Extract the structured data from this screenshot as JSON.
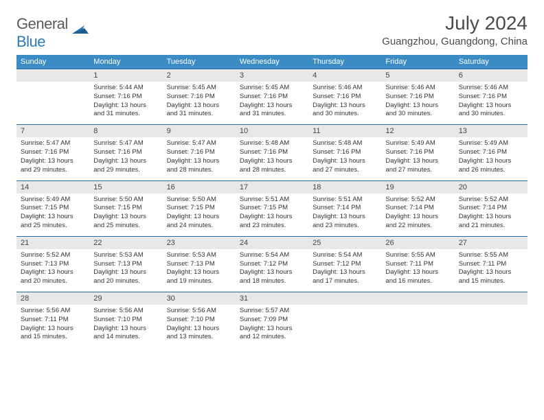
{
  "logo": {
    "text_a": "General",
    "text_b": "Blue"
  },
  "title": "July 2024",
  "location": "Guangzhou, Guangdong, China",
  "colors": {
    "header_bg": "#3b8bc4",
    "daynum_bg": "#e8e8e8",
    "row_divider": "#2a6a9a",
    "text": "#333333",
    "logo_gray": "#5a5a5a",
    "logo_blue": "#2a7ab8"
  },
  "day_headers": [
    "Sunday",
    "Monday",
    "Tuesday",
    "Wednesday",
    "Thursday",
    "Friday",
    "Saturday"
  ],
  "weeks": [
    [
      null,
      {
        "n": "1",
        "sr": "5:44 AM",
        "ss": "7:16 PM",
        "dl": "13 hours and 31 minutes."
      },
      {
        "n": "2",
        "sr": "5:45 AM",
        "ss": "7:16 PM",
        "dl": "13 hours and 31 minutes."
      },
      {
        "n": "3",
        "sr": "5:45 AM",
        "ss": "7:16 PM",
        "dl": "13 hours and 31 minutes."
      },
      {
        "n": "4",
        "sr": "5:46 AM",
        "ss": "7:16 PM",
        "dl": "13 hours and 30 minutes."
      },
      {
        "n": "5",
        "sr": "5:46 AM",
        "ss": "7:16 PM",
        "dl": "13 hours and 30 minutes."
      },
      {
        "n": "6",
        "sr": "5:46 AM",
        "ss": "7:16 PM",
        "dl": "13 hours and 30 minutes."
      }
    ],
    [
      {
        "n": "7",
        "sr": "5:47 AM",
        "ss": "7:16 PM",
        "dl": "13 hours and 29 minutes."
      },
      {
        "n": "8",
        "sr": "5:47 AM",
        "ss": "7:16 PM",
        "dl": "13 hours and 29 minutes."
      },
      {
        "n": "9",
        "sr": "5:47 AM",
        "ss": "7:16 PM",
        "dl": "13 hours and 28 minutes."
      },
      {
        "n": "10",
        "sr": "5:48 AM",
        "ss": "7:16 PM",
        "dl": "13 hours and 28 minutes."
      },
      {
        "n": "11",
        "sr": "5:48 AM",
        "ss": "7:16 PM",
        "dl": "13 hours and 27 minutes."
      },
      {
        "n": "12",
        "sr": "5:49 AM",
        "ss": "7:16 PM",
        "dl": "13 hours and 27 minutes."
      },
      {
        "n": "13",
        "sr": "5:49 AM",
        "ss": "7:16 PM",
        "dl": "13 hours and 26 minutes."
      }
    ],
    [
      {
        "n": "14",
        "sr": "5:49 AM",
        "ss": "7:15 PM",
        "dl": "13 hours and 25 minutes."
      },
      {
        "n": "15",
        "sr": "5:50 AM",
        "ss": "7:15 PM",
        "dl": "13 hours and 25 minutes."
      },
      {
        "n": "16",
        "sr": "5:50 AM",
        "ss": "7:15 PM",
        "dl": "13 hours and 24 minutes."
      },
      {
        "n": "17",
        "sr": "5:51 AM",
        "ss": "7:15 PM",
        "dl": "13 hours and 23 minutes."
      },
      {
        "n": "18",
        "sr": "5:51 AM",
        "ss": "7:14 PM",
        "dl": "13 hours and 23 minutes."
      },
      {
        "n": "19",
        "sr": "5:52 AM",
        "ss": "7:14 PM",
        "dl": "13 hours and 22 minutes."
      },
      {
        "n": "20",
        "sr": "5:52 AM",
        "ss": "7:14 PM",
        "dl": "13 hours and 21 minutes."
      }
    ],
    [
      {
        "n": "21",
        "sr": "5:52 AM",
        "ss": "7:13 PM",
        "dl": "13 hours and 20 minutes."
      },
      {
        "n": "22",
        "sr": "5:53 AM",
        "ss": "7:13 PM",
        "dl": "13 hours and 20 minutes."
      },
      {
        "n": "23",
        "sr": "5:53 AM",
        "ss": "7:13 PM",
        "dl": "13 hours and 19 minutes."
      },
      {
        "n": "24",
        "sr": "5:54 AM",
        "ss": "7:12 PM",
        "dl": "13 hours and 18 minutes."
      },
      {
        "n": "25",
        "sr": "5:54 AM",
        "ss": "7:12 PM",
        "dl": "13 hours and 17 minutes."
      },
      {
        "n": "26",
        "sr": "5:55 AM",
        "ss": "7:11 PM",
        "dl": "13 hours and 16 minutes."
      },
      {
        "n": "27",
        "sr": "5:55 AM",
        "ss": "7:11 PM",
        "dl": "13 hours and 15 minutes."
      }
    ],
    [
      {
        "n": "28",
        "sr": "5:56 AM",
        "ss": "7:11 PM",
        "dl": "13 hours and 15 minutes."
      },
      {
        "n": "29",
        "sr": "5:56 AM",
        "ss": "7:10 PM",
        "dl": "13 hours and 14 minutes."
      },
      {
        "n": "30",
        "sr": "5:56 AM",
        "ss": "7:10 PM",
        "dl": "13 hours and 13 minutes."
      },
      {
        "n": "31",
        "sr": "5:57 AM",
        "ss": "7:09 PM",
        "dl": "13 hours and 12 minutes."
      },
      null,
      null,
      null
    ]
  ],
  "labels": {
    "sunrise": "Sunrise:",
    "sunset": "Sunset:",
    "daylight": "Daylight:"
  }
}
